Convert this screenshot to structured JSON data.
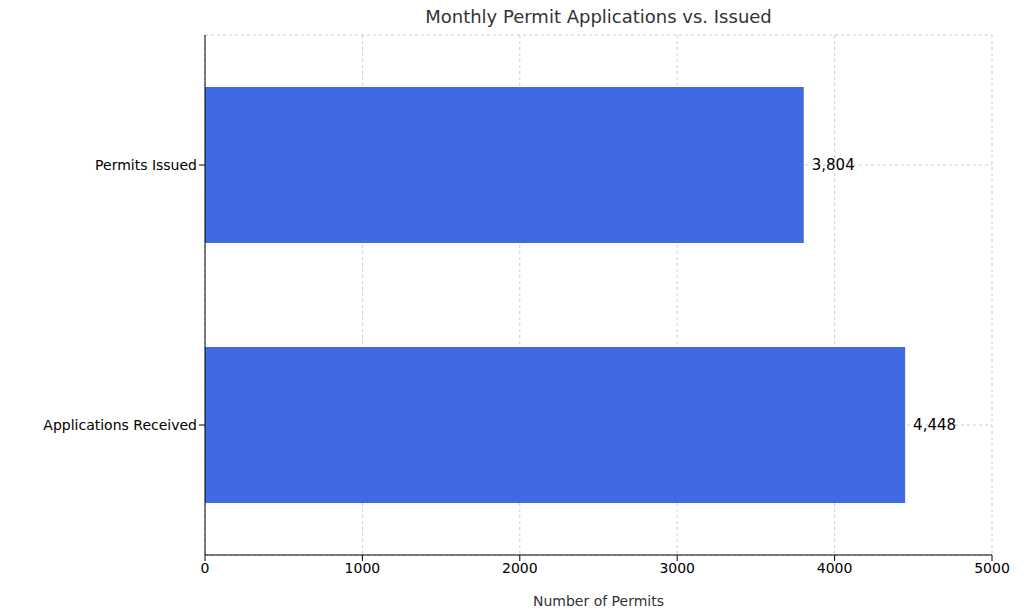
{
  "chart_data": {
    "type": "bar",
    "title": "Monthly Permit Applications vs. Issued",
    "x_label": "Number of Permits",
    "categories": [
      "Permits Issued",
      "Applications Received"
    ],
    "values": [
      3804,
      4448
    ],
    "value_labels": [
      "3,804",
      "4,448"
    ],
    "color": "#4169e1",
    "orientation": "horizontal",
    "xlim": [
      0,
      5000
    ],
    "xticks": [
      0,
      1000,
      2000,
      3000,
      4000,
      5000
    ],
    "grid": true,
    "data_labels": true
  }
}
